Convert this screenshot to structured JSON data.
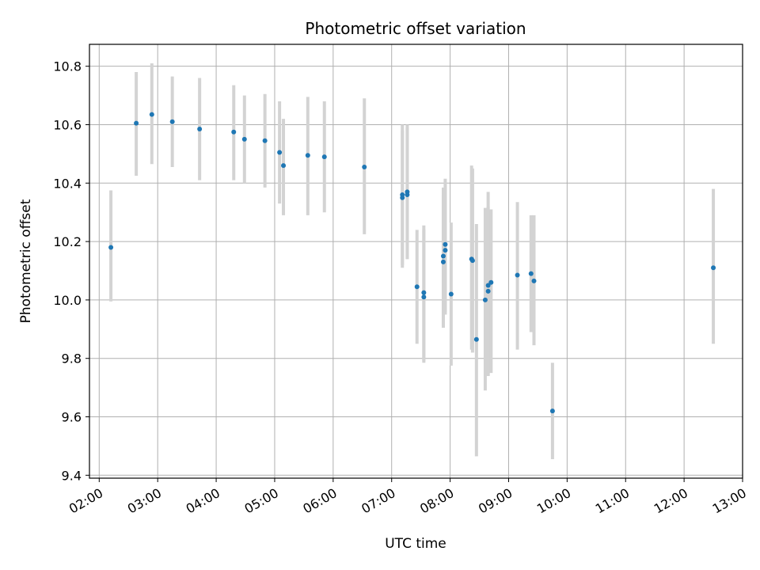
{
  "chart_data": {
    "type": "scatter",
    "title": "Photometric offset variation",
    "xlabel": "UTC time",
    "ylabel": "Photometric offset",
    "x_unit": "UTC time (HH:MM)",
    "xlim": [
      "01:50",
      "13:00"
    ],
    "ylim": [
      9.39,
      10.875
    ],
    "grid": true,
    "x_ticks": [
      "02:00",
      "03:00",
      "04:00",
      "05:00",
      "06:00",
      "07:00",
      "08:00",
      "09:00",
      "10:00",
      "11:00",
      "12:00",
      "13:00"
    ],
    "y_ticks": [
      "9.4",
      "9.6",
      "9.8",
      "10.0",
      "10.2",
      "10.4",
      "10.6",
      "10.8"
    ],
    "colors": {
      "marker": "#1f77b4",
      "errorbar": "#d3d3d3",
      "grid": "#b0b0b0"
    },
    "points": [
      {
        "x": "02:12",
        "y": 10.18,
        "lo": 9.995,
        "hi": 10.375
      },
      {
        "x": "02:38",
        "y": 10.605,
        "lo": 10.425,
        "hi": 10.78
      },
      {
        "x": "02:54",
        "y": 10.635,
        "lo": 10.465,
        "hi": 10.81
      },
      {
        "x": "03:15",
        "y": 10.61,
        "lo": 10.455,
        "hi": 10.765
      },
      {
        "x": "03:43",
        "y": 10.585,
        "lo": 10.41,
        "hi": 10.76
      },
      {
        "x": "04:18",
        "y": 10.575,
        "lo": 10.41,
        "hi": 10.735
      },
      {
        "x": "04:29",
        "y": 10.55,
        "lo": 10.4,
        "hi": 10.7
      },
      {
        "x": "04:50",
        "y": 10.545,
        "lo": 10.385,
        "hi": 10.705
      },
      {
        "x": "05:05",
        "y": 10.505,
        "lo": 10.33,
        "hi": 10.68
      },
      {
        "x": "05:09",
        "y": 10.46,
        "lo": 10.29,
        "hi": 10.62
      },
      {
        "x": "05:34",
        "y": 10.495,
        "lo": 10.29,
        "hi": 10.695
      },
      {
        "x": "05:51",
        "y": 10.49,
        "lo": 10.3,
        "hi": 10.68
      },
      {
        "x": "06:32",
        "y": 10.455,
        "lo": 10.225,
        "hi": 10.69
      },
      {
        "x": "07:11",
        "y": 10.36,
        "lo": 10.11,
        "hi": 10.6
      },
      {
        "x": "07:11",
        "y": 10.35,
        "lo": 10.12,
        "hi": 10.58
      },
      {
        "x": "07:16",
        "y": 10.36,
        "lo": 10.14,
        "hi": 10.59
      },
      {
        "x": "07:16",
        "y": 10.37,
        "lo": 10.14,
        "hi": 10.6
      },
      {
        "x": "07:26",
        "y": 10.045,
        "lo": 9.85,
        "hi": 10.24
      },
      {
        "x": "07:33",
        "y": 10.025,
        "lo": 9.79,
        "hi": 10.255
      },
      {
        "x": "07:33",
        "y": 10.01,
        "lo": 9.785,
        "hi": 10.24
      },
      {
        "x": "07:53",
        "y": 10.15,
        "lo": 9.905,
        "hi": 10.385
      },
      {
        "x": "07:53",
        "y": 10.13,
        "lo": 9.91,
        "hi": 10.36
      },
      {
        "x": "07:55",
        "y": 10.19,
        "lo": 9.96,
        "hi": 10.415
      },
      {
        "x": "07:55",
        "y": 10.17,
        "lo": 9.95,
        "hi": 10.4
      },
      {
        "x": "08:01",
        "y": 10.02,
        "lo": 9.775,
        "hi": 10.265
      },
      {
        "x": "08:22",
        "y": 10.14,
        "lo": 9.83,
        "hi": 10.46
      },
      {
        "x": "08:23",
        "y": 10.135,
        "lo": 9.82,
        "hi": 10.45
      },
      {
        "x": "08:27",
        "y": 9.865,
        "lo": 9.465,
        "hi": 10.26
      },
      {
        "x": "08:36",
        "y": 10.0,
        "lo": 9.69,
        "hi": 10.315
      },
      {
        "x": "08:39",
        "y": 10.05,
        "lo": 9.74,
        "hi": 10.37
      },
      {
        "x": "08:39",
        "y": 10.03,
        "lo": 9.74,
        "hi": 10.32
      },
      {
        "x": "08:42",
        "y": 10.06,
        "lo": 9.75,
        "hi": 10.31
      },
      {
        "x": "09:09",
        "y": 10.085,
        "lo": 9.83,
        "hi": 10.335
      },
      {
        "x": "09:23",
        "y": 10.09,
        "lo": 9.89,
        "hi": 10.29
      },
      {
        "x": "09:26",
        "y": 10.065,
        "lo": 9.845,
        "hi": 10.29
      },
      {
        "x": "09:45",
        "y": 9.62,
        "lo": 9.455,
        "hi": 9.785
      },
      {
        "x": "12:30",
        "y": 10.11,
        "lo": 9.85,
        "hi": 10.38
      }
    ]
  }
}
